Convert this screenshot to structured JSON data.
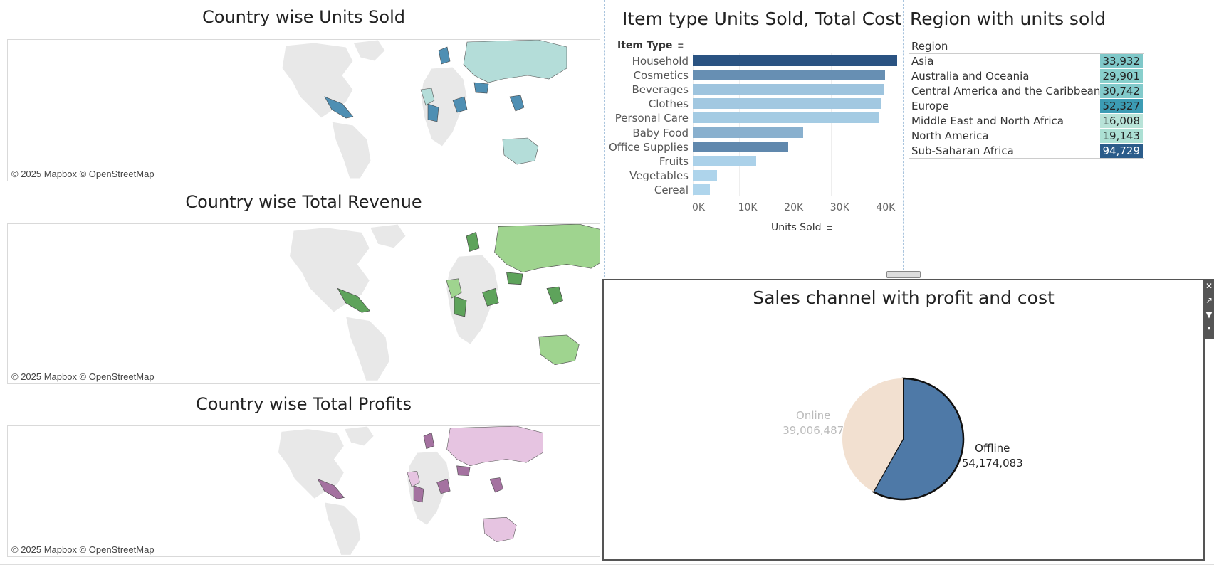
{
  "maps": {
    "units": {
      "title": "Country wise Units Sold",
      "attribution": "© 2025 Mapbox © OpenStreetMap",
      "accent": "#4f8fb3",
      "light": "#b4ddd9"
    },
    "revenue": {
      "title": "Country wise Total Revenue",
      "attribution": "© 2025 Mapbox © OpenStreetMap",
      "accent": "#5ea35b",
      "light": "#9fd48f"
    },
    "profits": {
      "title": "Country wise Total Profits",
      "attribution": "© 2025 Mapbox © OpenStreetMap",
      "accent": "#a472a0",
      "light": "#e6c4e1"
    }
  },
  "item_type": {
    "title": "Item type Units Sold, Total Cost",
    "header": "Item Type",
    "axis_label": "Units Sold",
    "chart_data": {
      "type": "bar",
      "categories": [
        "Household",
        "Cosmetics",
        "Beverages",
        "Clothes",
        "Personal Care",
        "Baby Food",
        "Office Supplies",
        "Fruits",
        "Vegetables",
        "Cereal"
      ],
      "values": [
        44500,
        41800,
        41600,
        41000,
        40400,
        24000,
        20800,
        13800,
        5200,
        3700
      ],
      "color_values": [
        1.0,
        0.55,
        0.15,
        0.12,
        0.1,
        0.3,
        0.6,
        0.05,
        0.03,
        0.02
      ],
      "xlim": [
        0,
        48000
      ],
      "ticks": [
        0,
        10000,
        20000,
        30000,
        40000
      ],
      "tick_labels": [
        "0K",
        "10K",
        "20K",
        "30K",
        "40K"
      ],
      "xlabel": "Units Sold",
      "ylabel": "Item Type"
    }
  },
  "region": {
    "title": "Region with units sold",
    "header": "Region",
    "chart_data": {
      "type": "table",
      "rows": [
        {
          "name": "Asia",
          "value": "33,932",
          "color": "#7fc8c9"
        },
        {
          "name": "Australia and Oceania",
          "value": "29,901",
          "color": "#88cfcc"
        },
        {
          "name": "Central America and the Caribbean",
          "value": "30,742",
          "color": "#82cacb"
        },
        {
          "name": "Europe",
          "value": "52,327",
          "color": "#3c9cb4"
        },
        {
          "name": "Middle East and North Africa",
          "value": "16,008",
          "color": "#b8e3d8"
        },
        {
          "name": "North America",
          "value": "19,143",
          "color": "#ace0d4"
        },
        {
          "name": "Sub-Saharan Africa",
          "value": "94,729",
          "color": "#2b5c8a"
        }
      ]
    }
  },
  "sales": {
    "title": "Sales channel with profit and cost",
    "chart_data": {
      "type": "pie",
      "slices": [
        {
          "name": "Offline",
          "value": 54174083,
          "value_label": "54,174,083",
          "color": "#4e79a7"
        },
        {
          "name": "Online",
          "value": 39006487,
          "value_label": "39,006,487",
          "color": "#f2e0d0"
        }
      ]
    },
    "tools": [
      "close-icon",
      "popout-icon",
      "filter-icon",
      "more-icon"
    ]
  }
}
